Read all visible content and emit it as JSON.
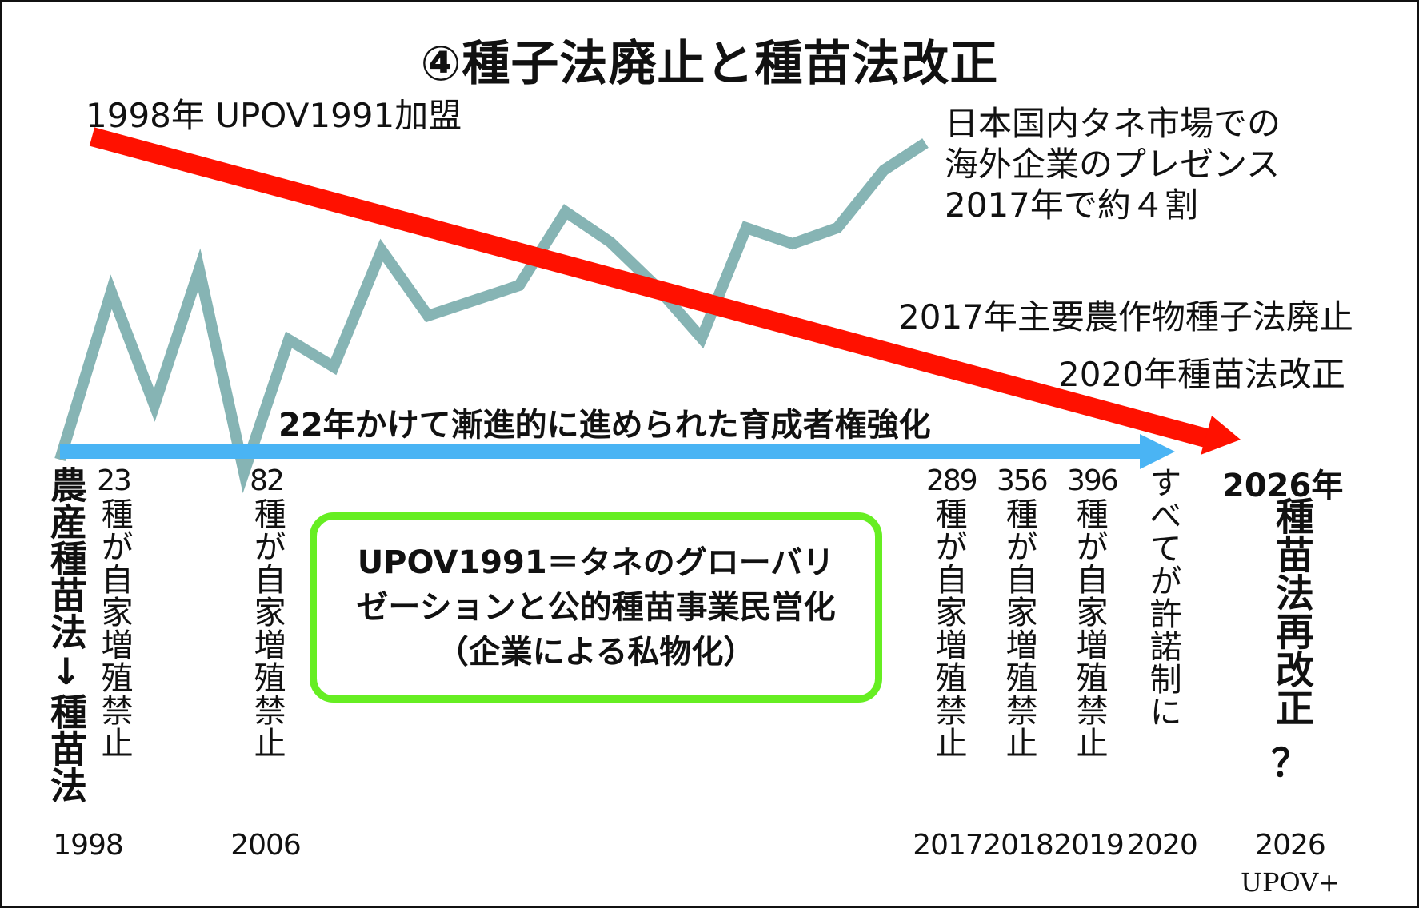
{
  "title": "④種子法廃止と種苗法改正",
  "labels": {
    "upov_join": "1998年 UPOV1991加盟",
    "presence": [
      "日本国内タネ市場での",
      "海外企業のプレゼンス",
      "2017年で約４割"
    ],
    "abolition_2017": "2017年主要農作物種子法廃止",
    "revision_2020": "2020年種苗法改正",
    "trend": "22年かけて漸進的に進められた育成者権強化"
  },
  "columns": [
    {
      "id": "law",
      "number": "",
      "text": "農産種苗法↓種苗法"
    },
    {
      "id": "c1998",
      "number": "23",
      "text": "種が自家増殖禁止"
    },
    {
      "id": "c2006",
      "number": "82",
      "text": "種が自家増殖禁止"
    },
    {
      "id": "c2017",
      "number": "289",
      "text": "種が自家増殖禁止"
    },
    {
      "id": "c2018",
      "number": "356",
      "text": "種が自家増殖禁止"
    },
    {
      "id": "c2019",
      "number": "396",
      "text": "種が自家増殖禁止"
    },
    {
      "id": "c2020",
      "number": "",
      "text": "すべてが許諾制に"
    }
  ],
  "final": {
    "year_label": "2026年",
    "text": "種苗法再改正",
    "question": "？"
  },
  "box": {
    "lines": [
      "UPOV1991＝タネのグローバリ",
      "ゼーションと公的種苗事業民営化",
      "（企業による私物化）"
    ]
  },
  "years": [
    "1998",
    "2006",
    "2017",
    "2018",
    "2019",
    "2020",
    "2026"
  ],
  "upov_plus": "UPOV+",
  "colors": {
    "red_arrow": "#ff1100",
    "blue_arrow": "#4ab4f4",
    "zigzag": "#86b4b4",
    "box_border": "#66ee22",
    "text": "#111111"
  }
}
